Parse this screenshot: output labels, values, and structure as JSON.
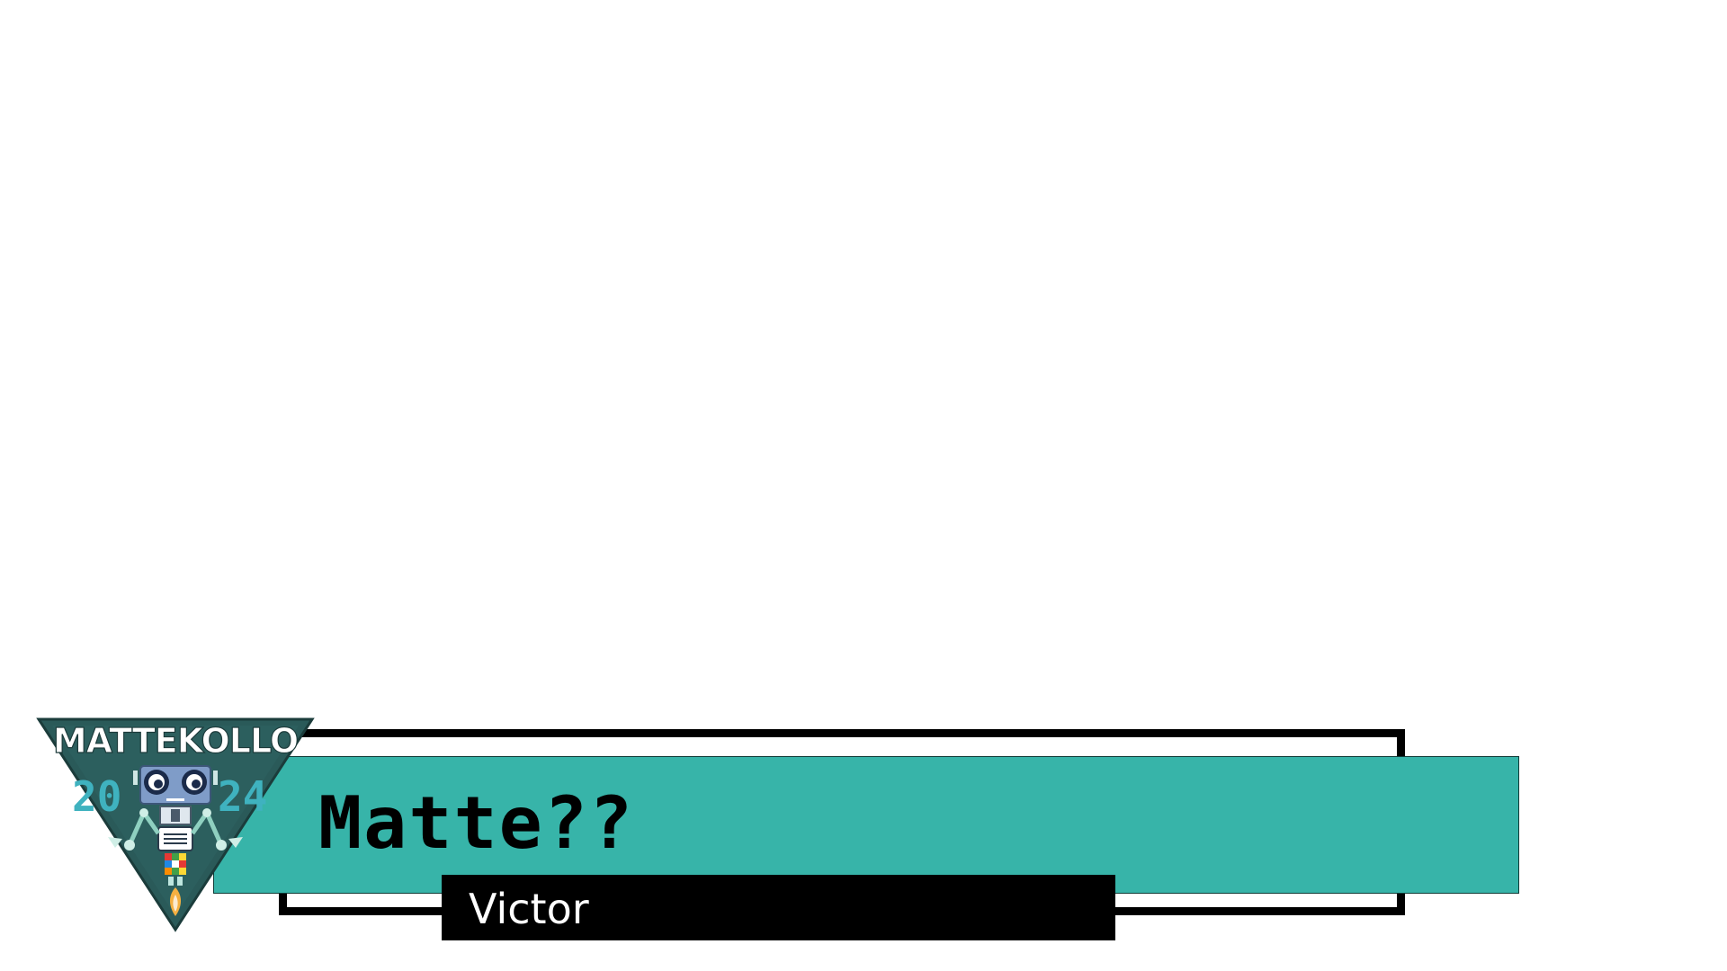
{
  "logo": {
    "wordmark": "MATTEKOLLO",
    "year_left": "20",
    "year_right": "24",
    "icon": "robot-mascot-icon"
  },
  "banner": {
    "title": "Matte??",
    "name": "Victor"
  },
  "colors": {
    "banner_teal": "#37b4a9",
    "logo_triangle": "#2a5a59",
    "year_cyan": "#3fb2bf",
    "frame_black": "#000000"
  }
}
